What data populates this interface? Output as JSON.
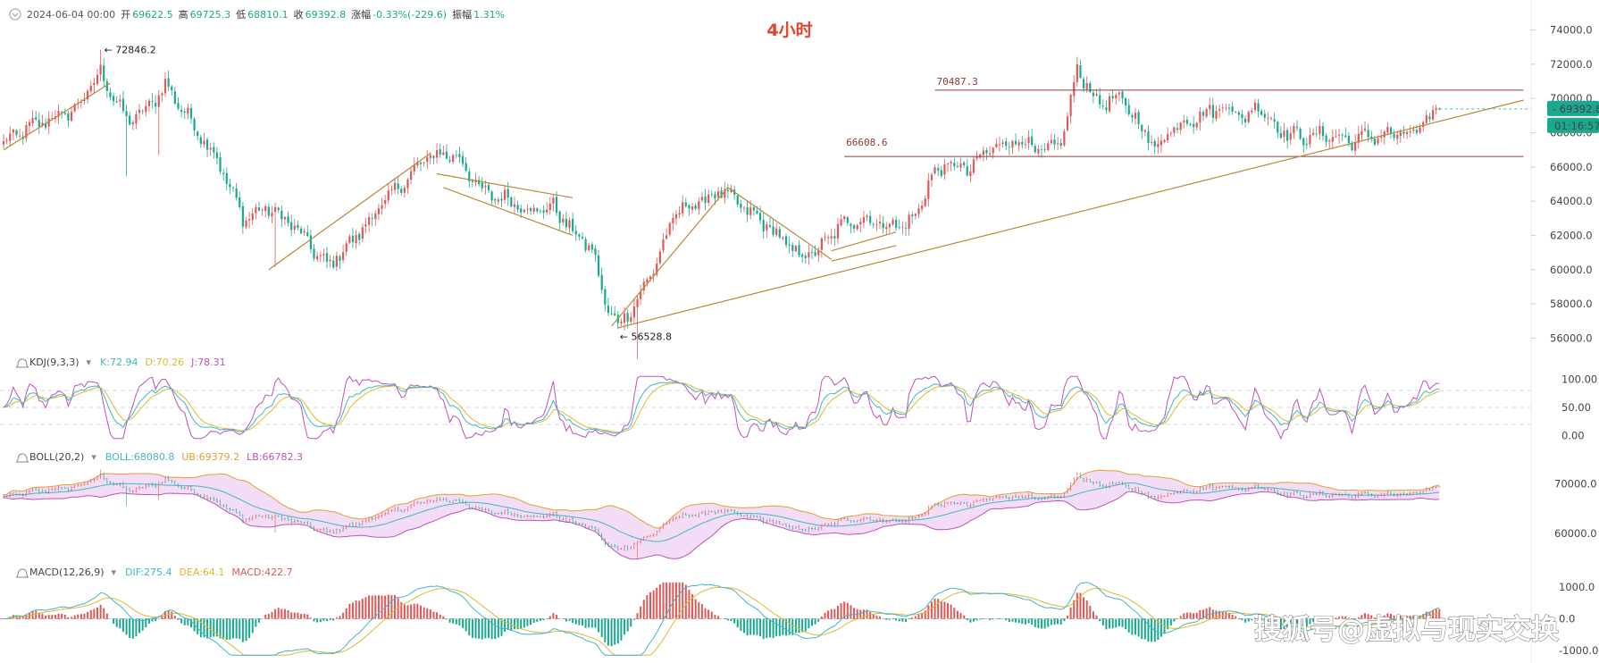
{
  "header": {
    "date": "2024-06-04 00:00",
    "open_label": "开",
    "open": "69622.5",
    "high_label": "高",
    "high": "69725.3",
    "low_label": "低",
    "low": "68810.1",
    "close_label": "收",
    "close": "69392.8",
    "change_label": "涨幅",
    "change": "-0.33%(-229.6)",
    "amplitude_label": "振幅",
    "amplitude": "1.31%"
  },
  "title": "4小时",
  "watermark": "搜狐号@虚拟与现实交换",
  "main_panel": {
    "y_ticks": [
      "74000.0",
      "72000.0",
      "70000.0",
      "68000.0",
      "66000.0",
      "64000.0",
      "62000.0",
      "60000.0",
      "58000.0",
      "56000.0"
    ],
    "price_tag": "69392.8",
    "countdown_tag": "01:16:57",
    "annotations": {
      "high": "72846.2",
      "low": "56528.8",
      "resistance": "70487.3",
      "support": "66608.6"
    },
    "colors": {
      "up": "#e05858",
      "down": "#1aa98f",
      "trend": "#b9883a",
      "level": "#8b3a3a"
    }
  },
  "kdj_panel": {
    "name": "KDJ(9,3,3)",
    "k_label": "K:72.94",
    "d_label": "D:70.26",
    "j_label": "J:78.31",
    "y_ticks": [
      "100.00",
      "50.00",
      "0.00"
    ],
    "colors": {
      "k": "#3fb7c4",
      "d": "#e0b830",
      "j": "#c050c0"
    }
  },
  "boll_panel": {
    "name": "BOLL(20,2)",
    "mid_label": "BOLL:68080.8",
    "ub_label": "UB:69379.2",
    "lb_label": "LB:66782.3",
    "y_ticks": [
      "70000.0",
      "60000.0"
    ],
    "colors": {
      "mid": "#3fb7c4",
      "ub": "#e0a030",
      "lb": "#c050c0",
      "band": "#f3dcf5"
    }
  },
  "macd_panel": {
    "name": "MACD(12,26,9)",
    "dif_label": "DIF:275.4",
    "dea_label": "DEA:64.1",
    "macd_label": "MACD:422.7",
    "y_ticks": [
      "1000.0",
      "0.0",
      "-1000.0"
    ],
    "colors": {
      "dif": "#3fb7c4",
      "dea": "#e0b830"
    }
  },
  "chart_data": {
    "type": "candlestick",
    "title": "4小时",
    "ylim": [
      55500,
      74500
    ],
    "anchors": [
      {
        "i": 0,
        "p": 67400
      },
      {
        "i": 10,
        "p": 68500
      },
      {
        "i": 22,
        "p": 69300
      },
      {
        "i": 30,
        "p": 71500
      },
      {
        "i": 38,
        "p": 68700
      },
      {
        "i": 44,
        "p": 69300
      },
      {
        "i": 50,
        "p": 70800
      },
      {
        "i": 56,
        "p": 69200
      },
      {
        "i": 66,
        "p": 66500
      },
      {
        "i": 74,
        "p": 63000
      },
      {
        "i": 82,
        "p": 63600
      },
      {
        "i": 90,
        "p": 62500
      },
      {
        "i": 100,
        "p": 60200
      },
      {
        "i": 108,
        "p": 61700
      },
      {
        "i": 116,
        "p": 63600
      },
      {
        "i": 124,
        "p": 65200
      },
      {
        "i": 132,
        "p": 66700
      },
      {
        "i": 140,
        "p": 66700
      },
      {
        "i": 148,
        "p": 64500
      },
      {
        "i": 156,
        "p": 64100
      },
      {
        "i": 164,
        "p": 63400
      },
      {
        "i": 170,
        "p": 63700
      },
      {
        "i": 176,
        "p": 62200
      },
      {
        "i": 182,
        "p": 61200
      },
      {
        "i": 186,
        "p": 58000
      },
      {
        "i": 190,
        "p": 56800
      },
      {
        "i": 196,
        "p": 58200
      },
      {
        "i": 202,
        "p": 60500
      },
      {
        "i": 208,
        "p": 63400
      },
      {
        "i": 216,
        "p": 64000
      },
      {
        "i": 222,
        "p": 64600
      },
      {
        "i": 228,
        "p": 63700
      },
      {
        "i": 236,
        "p": 62600
      },
      {
        "i": 242,
        "p": 61500
      },
      {
        "i": 246,
        "p": 60800
      },
      {
        "i": 252,
        "p": 61100
      },
      {
        "i": 258,
        "p": 62500
      },
      {
        "i": 264,
        "p": 63000
      },
      {
        "i": 270,
        "p": 62800
      },
      {
        "i": 276,
        "p": 62500
      },
      {
        "i": 282,
        "p": 63000
      },
      {
        "i": 286,
        "p": 65200
      },
      {
        "i": 292,
        "p": 66200
      },
      {
        "i": 298,
        "p": 65800
      },
      {
        "i": 306,
        "p": 67200
      },
      {
        "i": 314,
        "p": 67600
      },
      {
        "i": 322,
        "p": 66700
      },
      {
        "i": 328,
        "p": 67900
      },
      {
        "i": 332,
        "p": 71800
      },
      {
        "i": 338,
        "p": 69800
      },
      {
        "i": 346,
        "p": 69900
      },
      {
        "i": 352,
        "p": 68300
      },
      {
        "i": 356,
        "p": 67100
      },
      {
        "i": 362,
        "p": 68400
      },
      {
        "i": 370,
        "p": 69000
      },
      {
        "i": 378,
        "p": 69600
      },
      {
        "i": 384,
        "p": 68800
      },
      {
        "i": 388,
        "p": 69700
      },
      {
        "i": 394,
        "p": 68200
      },
      {
        "i": 402,
        "p": 67700
      },
      {
        "i": 410,
        "p": 67900
      },
      {
        "i": 416,
        "p": 67500
      },
      {
        "i": 420,
        "p": 67700
      },
      {
        "i": 428,
        "p": 67900
      },
      {
        "i": 436,
        "p": 67900
      },
      {
        "i": 444,
        "p": 69400
      }
    ],
    "marked_high": {
      "i": 30,
      "value": 72846.2
    },
    "marked_low": {
      "i": 190,
      "value": 56528.8
    },
    "levels": [
      {
        "value": 70487.3,
        "from_i": 288,
        "to_i": 470
      },
      {
        "value": 66608.6,
        "from_i": 260,
        "to_i": 470
      }
    ],
    "trendlines": [
      {
        "from": [
          0,
          67000
        ],
        "to": [
          33,
          70900
        ]
      },
      {
        "from": [
          82,
          60000
        ],
        "to": [
          132,
          66800
        ]
      },
      {
        "from": [
          134,
          65600
        ],
        "to": [
          176,
          64200
        ]
      },
      {
        "from": [
          136,
          64800
        ],
        "to": [
          176,
          62000
        ]
      },
      {
        "from": [
          188,
          56700
        ],
        "to": [
          224,
          64800
        ]
      },
      {
        "from": [
          224,
          64800
        ],
        "to": [
          256,
          60600
        ]
      },
      {
        "from": [
          190,
          56600
        ],
        "to": [
          470,
          69900
        ]
      },
      {
        "from": [
          256,
          60500
        ],
        "to": [
          276,
          61400
        ]
      },
      {
        "from": [
          256,
          61100
        ],
        "to": [
          276,
          62200
        ]
      }
    ],
    "last_close": 69392.8,
    "kdj_ylim": [
      -10,
      110
    ],
    "boll_ylim": [
      55000,
      73500
    ],
    "macd_ylim": [
      -1200,
      1200
    ]
  }
}
